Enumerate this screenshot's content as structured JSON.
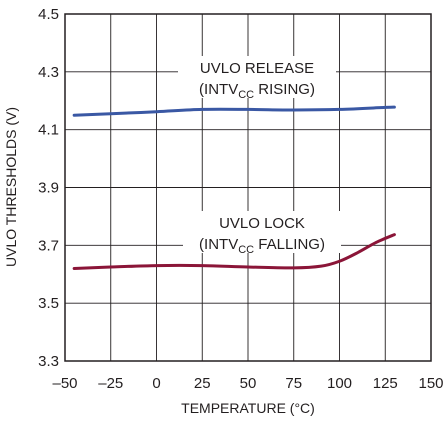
{
  "chart_data": {
    "type": "line",
    "title": "",
    "xlabel": "TEMPERATURE (°C)",
    "ylabel": "UVLO THRESHOLDS (V)",
    "xlim": [
      -50,
      150
    ],
    "ylim": [
      3.3,
      4.5
    ],
    "grid": true,
    "x_ticks": [
      "–50",
      "–25",
      "0",
      "25",
      "50",
      "75",
      "100",
      "125",
      "150"
    ],
    "y_ticks": [
      "3.3",
      "3.5",
      "3.7",
      "3.9",
      "4.1",
      "4.3",
      "4.5"
    ],
    "series": [
      {
        "name": "UVLO RELEASE",
        "color": "#3a58a4",
        "x": [
          -45,
          -25,
          0,
          25,
          50,
          75,
          100,
          125,
          130
        ],
        "y": [
          4.15,
          4.155,
          4.162,
          4.17,
          4.17,
          4.168,
          4.17,
          4.177,
          4.178
        ]
      },
      {
        "name": "UVLO LOCK",
        "color": "#8b1538",
        "x": [
          -45,
          -25,
          0,
          25,
          50,
          75,
          90,
          100,
          110,
          120,
          130
        ],
        "y": [
          3.62,
          3.625,
          3.63,
          3.63,
          3.625,
          3.622,
          3.628,
          3.645,
          3.675,
          3.71,
          3.737
        ]
      }
    ],
    "annotations": [
      {
        "line1": "UVLO RELEASE",
        "line2_pre": "(INTV",
        "line2_sub": "CC",
        "line2_post": " RISING)"
      },
      {
        "line1": "UVLO LOCK",
        "line2_pre": "(INTV",
        "line2_sub": "CC",
        "line2_post": " FALLING)"
      }
    ]
  }
}
